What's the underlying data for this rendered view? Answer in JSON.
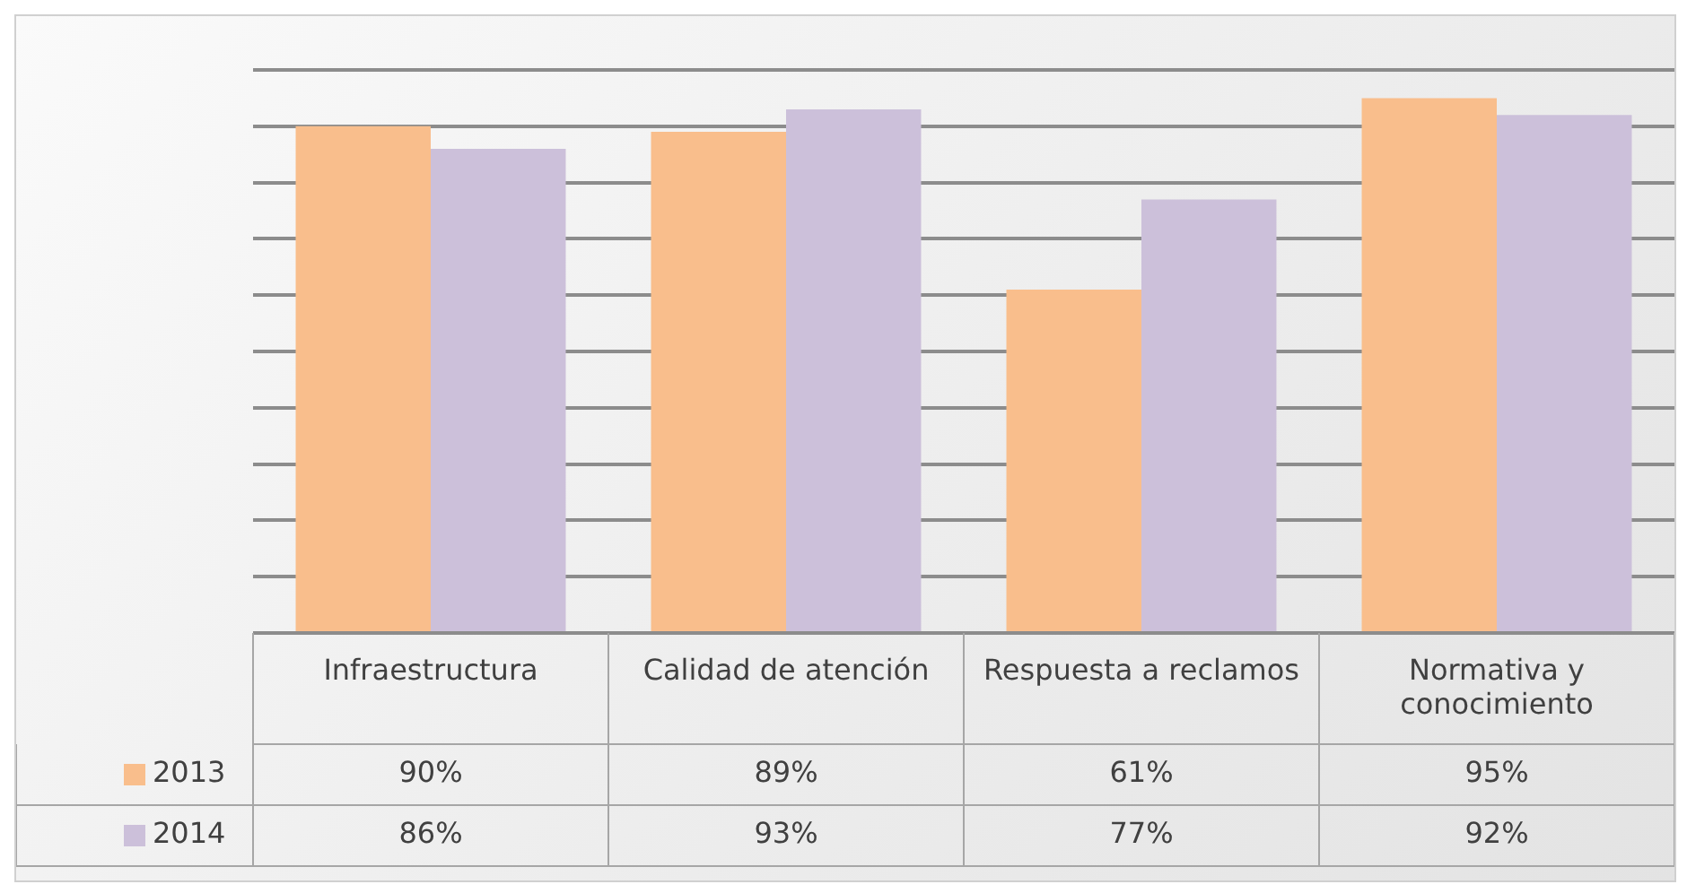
{
  "chart_data": {
    "type": "bar",
    "categories": [
      "Infraestructura",
      "Calidad de atención",
      "Respuesta a reclamos",
      "Normativa y conocimiento"
    ],
    "series": [
      {
        "name": "2013",
        "color": "#f9be8c",
        "values": [
          90,
          89,
          61,
          95
        ],
        "value_labels": [
          "90%",
          "89%",
          "61%",
          "95%"
        ]
      },
      {
        "name": "2014",
        "color": "#ccc0da",
        "values": [
          86,
          93,
          77,
          92
        ],
        "value_labels": [
          "86%",
          "93%",
          "77%",
          "92%"
        ]
      }
    ],
    "ylim": [
      0,
      100
    ],
    "yticks": [
      {
        "value": 0,
        "label": null
      },
      {
        "value": 10,
        "label": null
      },
      {
        "value": 20,
        "label": null
      },
      {
        "value": 30,
        "label": null
      },
      {
        "value": 40,
        "label": null
      },
      {
        "value": 50,
        "label": null
      },
      {
        "value": 60,
        "label": null
      },
      {
        "value": 70,
        "label": null
      },
      {
        "value": 80,
        "label": null
      },
      {
        "value": 90,
        "label": null
      },
      {
        "value": 100,
        "label": null
      }
    ],
    "grid": "y",
    "legend": "bottom left",
    "tick_labels": "x"
  }
}
